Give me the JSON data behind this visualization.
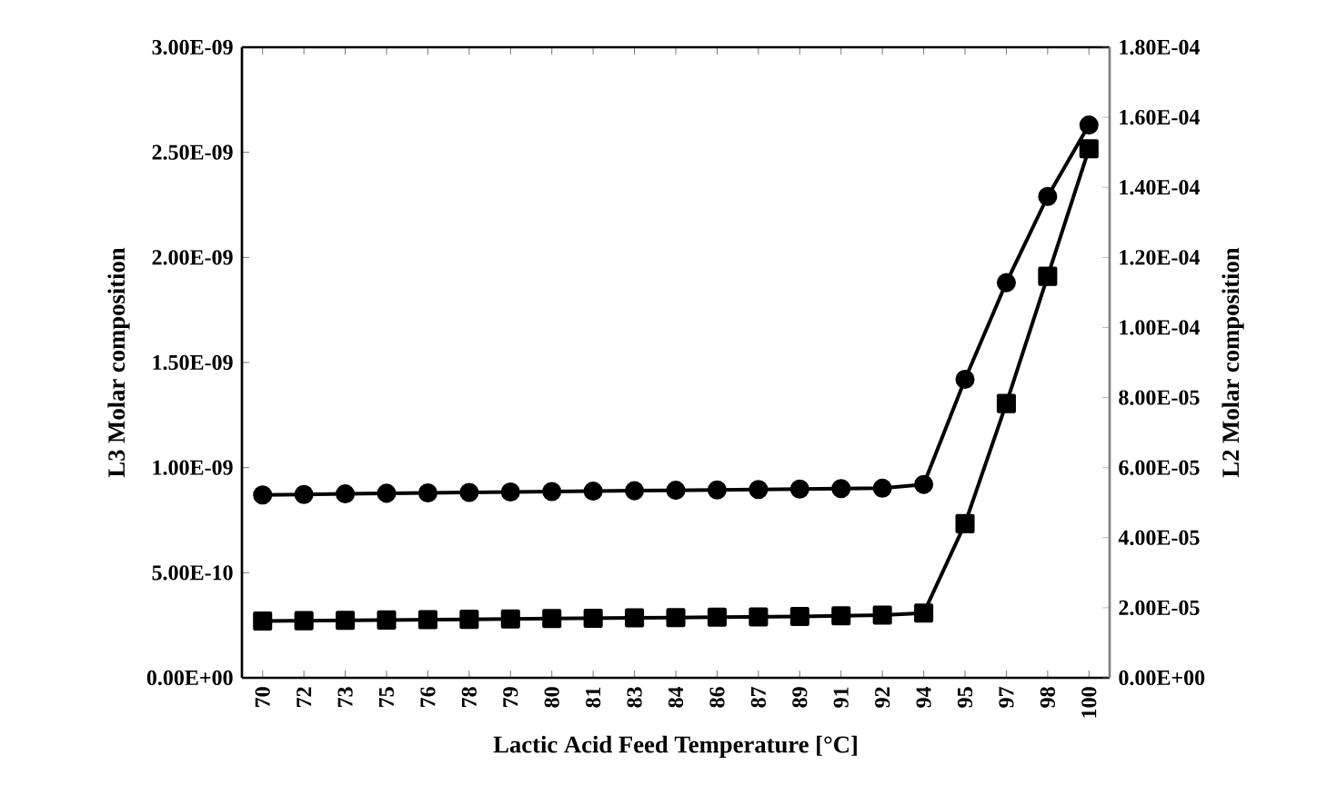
{
  "chart_data": {
    "type": "line",
    "xlabel": "Lactic Acid Feed Temperature [°C]",
    "ylabel": "L3 Molar composition",
    "y2label": "L2 Molar composition",
    "categories": [
      "70",
      "72",
      "73",
      "75",
      "76",
      "78",
      "79",
      "80",
      "81",
      "83",
      "84",
      "86",
      "87",
      "89",
      "91",
      "92",
      "94",
      "95",
      "97",
      "98",
      "100"
    ],
    "series": [
      {
        "color": "#000000",
        "marker": "circle",
        "values": [
          8.7e-10,
          8.72e-10,
          8.75e-10,
          8.78e-10,
          8.8e-10,
          8.82e-10,
          8.84e-10,
          8.86e-10,
          8.88e-10,
          8.9e-10,
          8.92e-10,
          8.94e-10,
          8.96e-10,
          8.98e-10,
          9e-10,
          9.02e-10,
          9.2e-10,
          1.42e-09,
          1.88e-09,
          2.29e-09,
          2.63e-09
        ]
      },
      {
        "color": "#000000",
        "marker": "square",
        "axis": "y2",
        "values": [
          1.62e-05,
          1.63e-05,
          1.64e-05,
          1.65e-05,
          1.66e-05,
          1.67e-05,
          1.68e-05,
          1.69e-05,
          1.7e-05,
          1.71e-05,
          1.72e-05,
          1.73e-05,
          1.74e-05,
          1.75e-05,
          1.77e-05,
          1.79e-05,
          1.85e-05,
          4.4e-05,
          7.83e-05,
          0.0001146,
          0.000151
        ]
      }
    ],
    "ylim": [
      0,
      3e-09
    ],
    "yticks": [
      {
        "value": 0,
        "label": "0.00E+00"
      },
      {
        "value": 5e-10,
        "label": "5.00E-10"
      },
      {
        "value": 1e-09,
        "label": "1.00E-09"
      },
      {
        "value": 1.5e-09,
        "label": "1.50E-09"
      },
      {
        "value": 2e-09,
        "label": "2.00E-09"
      },
      {
        "value": 2.5e-09,
        "label": "2.50E-09"
      },
      {
        "value": 3e-09,
        "label": "3.00E-09"
      }
    ],
    "y2lim": [
      0,
      0.00018
    ],
    "y2ticks": [
      {
        "value": 0,
        "label": "0.00E+00"
      },
      {
        "value": 2e-05,
        "label": "2.00E-05"
      },
      {
        "value": 4e-05,
        "label": "4.00E-05"
      },
      {
        "value": 6e-05,
        "label": "6.00E-05"
      },
      {
        "value": 8e-05,
        "label": "8.00E-05"
      },
      {
        "value": 0.0001,
        "label": "1.00E-04"
      },
      {
        "value": 0.00012,
        "label": "1.20E-04"
      },
      {
        "value": 0.00014,
        "label": "1.40E-04"
      },
      {
        "value": 0.00016,
        "label": "1.60E-04"
      },
      {
        "value": 0.00018,
        "label": "1.80E-04"
      }
    ]
  }
}
